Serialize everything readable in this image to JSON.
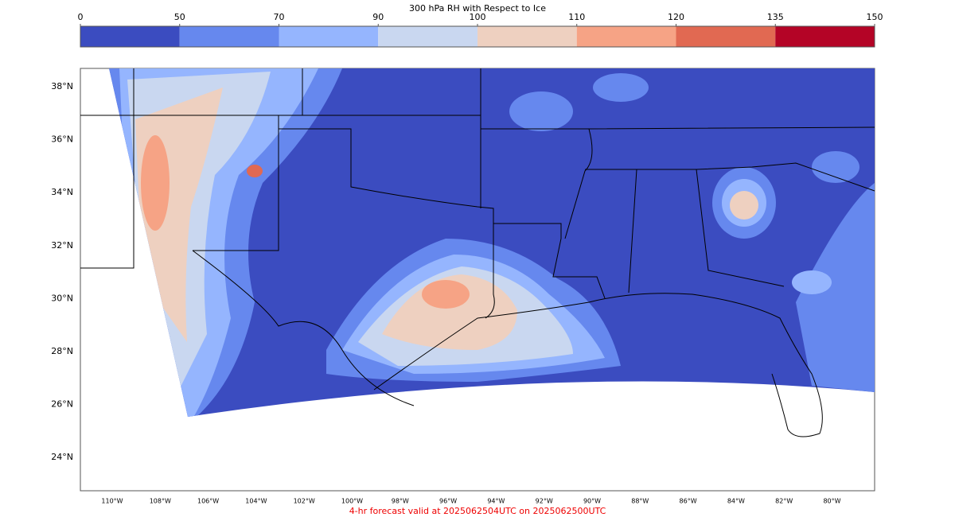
{
  "colorbar": {
    "title": "300 hPa RH with Respect to Ice",
    "ticks": [
      0,
      50,
      70,
      90,
      100,
      110,
      120,
      135,
      150
    ],
    "colors": [
      "#3b4cc0",
      "#6688ee",
      "#95b5fe",
      "#c9d7f0",
      "#eed0c0",
      "#f6a385",
      "#e16952",
      "#b40426"
    ]
  },
  "map": {
    "lat_labels": [
      "38°N",
      "36°N",
      "34°N",
      "32°N",
      "30°N",
      "28°N",
      "26°N",
      "24°N"
    ],
    "lon_labels": [
      "110°W",
      "108°W",
      "106°W",
      "104°W",
      "102°W",
      "100°W",
      "98°W",
      "96°W",
      "94°W",
      "92°W",
      "90°W",
      "88°W",
      "86°W",
      "84°W",
      "82°W",
      "80°W"
    ]
  },
  "footer": "4-hr forecast valid at 2025062504UTC on 2025062500UTC"
}
